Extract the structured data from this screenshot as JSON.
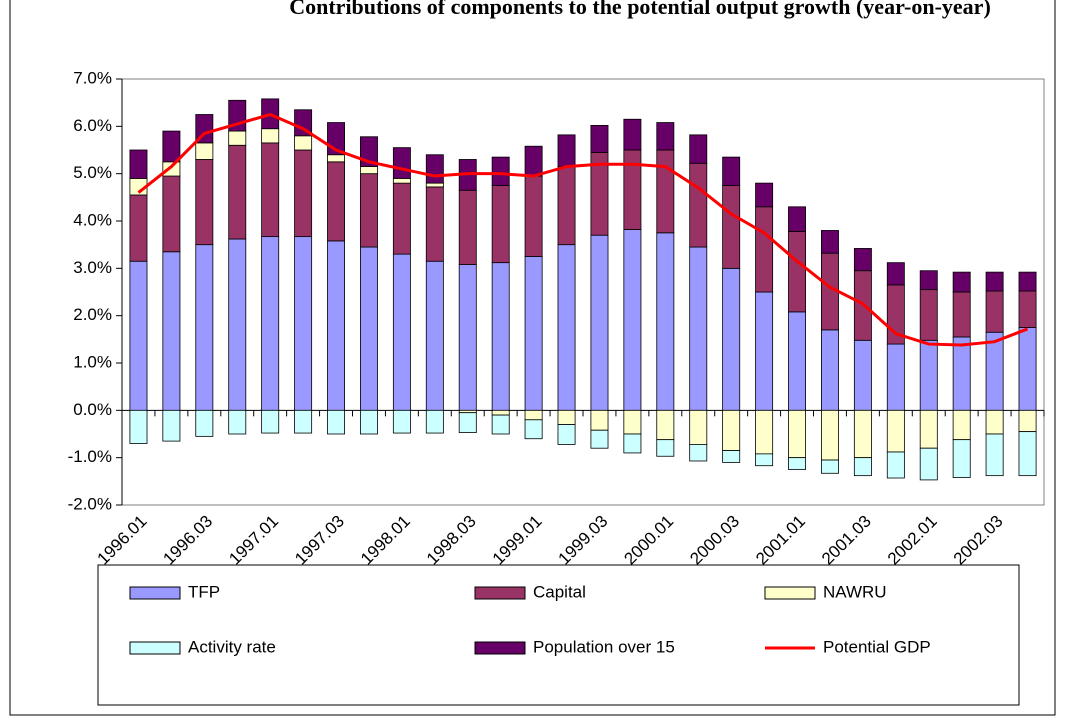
{
  "chart_data": {
    "type": "bar",
    "stacked": true,
    "title": "Contributions of components to the potential output growth (year-on-year)",
    "categories": [
      "1996.01",
      null,
      "1996.03",
      null,
      "1997.01",
      null,
      "1997.03",
      null,
      "1998.01",
      null,
      "1998.03",
      null,
      "1999.01",
      null,
      "1999.03",
      null,
      "2000.01",
      null,
      "2000.03",
      null,
      "2001.01",
      null,
      "2001.03",
      null,
      "2002.01",
      null,
      "2002.03",
      null
    ],
    "series": [
      {
        "name": "TFP",
        "color": "#9999ff",
        "values": [
          3.15,
          3.35,
          3.5,
          3.62,
          3.67,
          3.67,
          3.58,
          3.45,
          3.3,
          3.15,
          3.08,
          3.12,
          3.25,
          3.5,
          3.7,
          3.82,
          3.75,
          3.45,
          3.0,
          2.5,
          2.08,
          1.7,
          1.48,
          1.4,
          1.48,
          1.55,
          1.65,
          1.75
        ]
      },
      {
        "name": "Capital",
        "color": "#993366",
        "values": [
          1.4,
          1.6,
          1.8,
          1.98,
          1.98,
          1.83,
          1.67,
          1.55,
          1.5,
          1.57,
          1.57,
          1.63,
          1.7,
          1.65,
          1.75,
          1.68,
          1.75,
          1.77,
          1.75,
          1.8,
          1.7,
          1.62,
          1.47,
          1.25,
          1.07,
          0.95,
          0.87,
          0.77
        ]
      },
      {
        "name": "NAWRU",
        "color": "#ffffcc",
        "values": [
          0.35,
          0.3,
          0.35,
          0.3,
          0.3,
          0.3,
          0.15,
          0.15,
          0.1,
          0.08,
          -0.05,
          -0.1,
          -0.2,
          -0.3,
          -0.42,
          -0.5,
          -0.62,
          -0.72,
          -0.85,
          -0.92,
          -1.0,
          -1.05,
          -1.0,
          -0.88,
          -0.8,
          -0.62,
          -0.5,
          -0.45
        ]
      },
      {
        "name": "Activity rate",
        "color": "#ccffff",
        "values": [
          -0.7,
          -0.65,
          -0.55,
          -0.5,
          -0.48,
          -0.48,
          -0.5,
          -0.5,
          -0.48,
          -0.48,
          -0.42,
          -0.4,
          -0.4,
          -0.42,
          -0.38,
          -0.4,
          -0.35,
          -0.35,
          -0.25,
          -0.25,
          -0.25,
          -0.28,
          -0.38,
          -0.55,
          -0.67,
          -0.8,
          -0.88,
          -0.93
        ]
      },
      {
        "name": "Population over 15",
        "color": "#660066",
        "values": [
          0.6,
          0.65,
          0.6,
          0.65,
          0.63,
          0.55,
          0.68,
          0.63,
          0.65,
          0.6,
          0.65,
          0.6,
          0.63,
          0.67,
          0.57,
          0.65,
          0.58,
          0.6,
          0.6,
          0.5,
          0.52,
          0.48,
          0.47,
          0.47,
          0.4,
          0.42,
          0.4,
          0.4
        ]
      },
      {
        "name": "Potential GDP",
        "color": "#ff0000",
        "type": "line",
        "values": [
          4.6,
          5.15,
          5.85,
          6.05,
          6.25,
          5.95,
          5.5,
          5.25,
          5.1,
          4.95,
          5.0,
          5.0,
          4.95,
          5.15,
          5.2,
          5.2,
          5.15,
          4.7,
          4.15,
          3.75,
          3.15,
          2.6,
          2.25,
          1.62,
          1.4,
          1.38,
          1.45,
          1.72
        ]
      }
    ],
    "ylim": [
      -2,
      7
    ],
    "yticks": [
      {
        "value": -2,
        "label": "-2.0%"
      },
      {
        "value": -1,
        "label": "-1.0%"
      },
      {
        "value": 0,
        "label": "0.0%"
      },
      {
        "value": 1,
        "label": "1.0%"
      },
      {
        "value": 2,
        "label": "2.0%"
      },
      {
        "value": 3,
        "label": "3.0%"
      },
      {
        "value": 4,
        "label": "4.0%"
      },
      {
        "value": 5,
        "label": "5.0%"
      },
      {
        "value": 6,
        "label": "6.0%"
      },
      {
        "value": 7,
        "label": "7.0%"
      }
    ],
    "grid": false,
    "legend": "bottom"
  }
}
